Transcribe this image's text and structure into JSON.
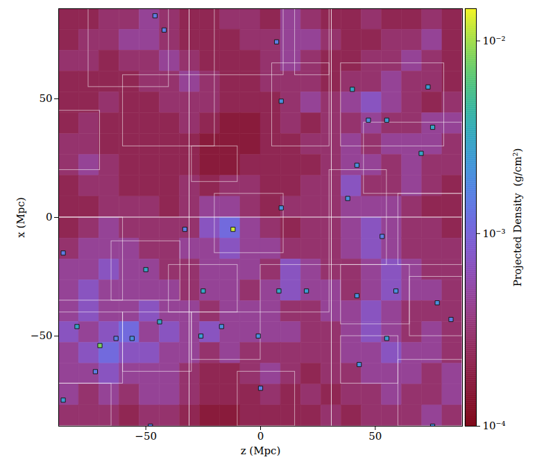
{
  "chart_data": {
    "type": "heatmap",
    "xlabel": "z (Mpc)",
    "ylabel": "x (Mpc)",
    "xlim": [
      -88,
      88
    ],
    "ylim": [
      -88,
      88
    ],
    "xticks": [
      -50,
      0,
      50
    ],
    "yticks": [
      -50,
      0,
      50
    ],
    "colorbar": {
      "label": "Projected Density  (g/cm²)",
      "lim": [
        0.0001,
        0.0147
      ],
      "log": true,
      "ticks": [
        {
          "value": 0.01,
          "label": "10⁻²"
        },
        {
          "value": 0.001,
          "label": "10⁻³"
        },
        {
          "value": 0.0001,
          "label": "10⁻⁴"
        }
      ]
    },
    "cells": [
      [
        0.00022,
        0.00022,
        0.0003,
        0.0003,
        0.00045,
        0.0003,
        0.00022,
        0.00022,
        0.0003,
        0.0003,
        0.00022,
        0.00045,
        0.0003,
        0.00022,
        0.00022,
        0.0003,
        0.00022,
        0.00022,
        0.0003,
        0.00022
      ],
      [
        0.00022,
        0.0003,
        0.0003,
        0.00045,
        0.00045,
        0.0003,
        0.00022,
        0.00022,
        0.00022,
        0.0003,
        0.0003,
        0.00045,
        0.00045,
        0.0003,
        0.00022,
        0.00022,
        0.0003,
        0.0003,
        0.00045,
        0.00022
      ],
      [
        0.0003,
        0.0003,
        0.00022,
        0.0003,
        0.0003,
        0.00045,
        0.0003,
        0.00022,
        0.00022,
        0.00022,
        0.0003,
        0.00045,
        0.0003,
        0.00022,
        0.00022,
        0.0003,
        0.0003,
        0.00045,
        0.0003,
        0.00022
      ],
      [
        0.00022,
        0.00022,
        0.00022,
        0.00022,
        0.0003,
        0.0003,
        0.00045,
        0.0003,
        0.00022,
        0.00022,
        0.0003,
        0.0003,
        0.0003,
        0.00022,
        0.0003,
        0.0003,
        0.00045,
        0.0003,
        0.0003,
        0.00022
      ],
      [
        0.00022,
        0.00022,
        0.0003,
        0.00022,
        0.00022,
        0.0003,
        0.0003,
        0.0003,
        0.00022,
        0.00022,
        0.00022,
        0.0003,
        0.00045,
        0.0003,
        0.00045,
        0.0007,
        0.00045,
        0.0003,
        0.00022,
        0.0003
      ],
      [
        0.00022,
        0.0003,
        0.00022,
        0.00022,
        0.00022,
        0.00022,
        0.0003,
        0.00022,
        0.00016,
        0.00016,
        0.00022,
        0.0003,
        0.00022,
        0.0003,
        0.0003,
        0.00045,
        0.0003,
        0.0003,
        0.00045,
        0.00045
      ],
      [
        0.0003,
        0.0003,
        0.00022,
        0.00022,
        0.00022,
        0.00022,
        0.00022,
        0.00016,
        0.00016,
        0.00016,
        0.00022,
        0.00022,
        0.0003,
        0.0003,
        0.00045,
        0.0003,
        0.00045,
        0.00045,
        0.00045,
        0.0003
      ],
      [
        0.0003,
        0.00045,
        0.0003,
        0.00022,
        0.00022,
        0.00022,
        0.00022,
        0.00016,
        0.00016,
        0.00022,
        0.00022,
        0.00022,
        0.00022,
        0.0003,
        0.00045,
        0.00045,
        0.0003,
        0.00045,
        0.0003,
        0.0003
      ],
      [
        0.00022,
        0.0003,
        0.0003,
        0.00022,
        0.00022,
        0.00022,
        0.0003,
        0.00022,
        0.0003,
        0.0003,
        0.00022,
        0.00022,
        0.0003,
        0.0003,
        0.0007,
        0.0003,
        0.0003,
        0.00045,
        0.0003,
        0.00022
      ],
      [
        0.00022,
        0.00022,
        0.0003,
        0.0003,
        0.0003,
        0.00022,
        0.0003,
        0.00045,
        0.00045,
        0.0003,
        0.00022,
        0.0003,
        0.0003,
        0.0003,
        0.00045,
        0.00045,
        0.00045,
        0.0003,
        0.00022,
        0.00022
      ],
      [
        0.00022,
        0.0003,
        0.00045,
        0.0003,
        0.0003,
        0.0003,
        0.0003,
        0.0007,
        0.0011,
        0.00045,
        0.0003,
        0.00022,
        0.0003,
        0.0003,
        0.00045,
        0.0007,
        0.00045,
        0.0003,
        0.0003,
        0.00022
      ],
      [
        0.0003,
        0.00045,
        0.00045,
        0.00045,
        0.0003,
        0.0003,
        0.00045,
        0.00045,
        0.0007,
        0.00045,
        0.00045,
        0.0003,
        0.0003,
        0.0003,
        0.00045,
        0.0007,
        0.00045,
        0.0003,
        0.0003,
        0.0003
      ],
      [
        0.00045,
        0.00045,
        0.0007,
        0.00045,
        0.00045,
        0.0003,
        0.0003,
        0.00045,
        0.00045,
        0.00045,
        0.0003,
        0.0007,
        0.00045,
        0.0003,
        0.0003,
        0.00045,
        0.0007,
        0.00045,
        0.0003,
        0.0003
      ],
      [
        0.00045,
        0.0007,
        0.00045,
        0.00045,
        0.00045,
        0.00045,
        0.0003,
        0.00045,
        0.00045,
        0.0003,
        0.00045,
        0.0007,
        0.00045,
        0.00045,
        0.0003,
        0.00045,
        0.0007,
        0.00045,
        0.00045,
        0.0003
      ],
      [
        0.00045,
        0.0007,
        0.00045,
        0.00045,
        0.0007,
        0.00045,
        0.00045,
        0.0003,
        0.00045,
        0.00045,
        0.00045,
        0.0003,
        0.0003,
        0.00045,
        0.00045,
        0.0007,
        0.00045,
        0.0003,
        0.0003,
        0.0003
      ],
      [
        0.0007,
        0.00045,
        0.0007,
        0.0011,
        0.00045,
        0.0007,
        0.00045,
        0.0007,
        0.00045,
        0.00045,
        0.00045,
        0.00045,
        0.0003,
        0.0003,
        0.00045,
        0.0007,
        0.00045,
        0.0003,
        0.00045,
        0.0003
      ],
      [
        0.00045,
        0.0007,
        0.0011,
        0.0007,
        0.0007,
        0.00045,
        0.00045,
        0.0003,
        0.00045,
        0.0003,
        0.0003,
        0.0003,
        0.0003,
        0.0003,
        0.00045,
        0.00045,
        0.0007,
        0.00045,
        0.00045,
        0.0003
      ],
      [
        0.00045,
        0.00045,
        0.0007,
        0.00045,
        0.00045,
        0.00045,
        0.0003,
        0.00022,
        0.00022,
        0.0003,
        0.00045,
        0.0003,
        0.00022,
        0.0003,
        0.0003,
        0.00045,
        0.00045,
        0.00045,
        0.0003,
        0.00045
      ],
      [
        0.00045,
        0.0003,
        0.00045,
        0.0003,
        0.00045,
        0.00045,
        0.0003,
        0.00022,
        0.00022,
        0.00022,
        0.0003,
        0.00022,
        0.0003,
        0.00022,
        0.0003,
        0.0003,
        0.00045,
        0.0003,
        0.0003,
        0.00045
      ],
      [
        0.0003,
        0.0003,
        0.0003,
        0.00022,
        0.0003,
        0.0003,
        0.00022,
        0.00016,
        0.00016,
        0.00022,
        0.00022,
        0.00022,
        0.00022,
        0.0003,
        0.00022,
        0.0003,
        0.0003,
        0.0003,
        0.00045,
        0.0003
      ]
    ],
    "halos": [
      [
        -12,
        -5,
        0.012
      ],
      [
        -70,
        -54,
        0.008
      ],
      [
        -80,
        -46,
        0.003
      ],
      [
        -44,
        -44,
        0.003
      ],
      [
        -50,
        -22,
        0.003
      ],
      [
        -25,
        -31,
        0.003
      ],
      [
        8,
        -31,
        0.003
      ],
      [
        20,
        -31,
        0.0025
      ],
      [
        -26,
        -50,
        0.0025
      ],
      [
        -17,
        -46,
        0.002
      ],
      [
        -1,
        -50,
        0.002
      ],
      [
        -86,
        -77,
        0.0025
      ],
      [
        -56,
        -51,
        0.002
      ],
      [
        -63,
        -51,
        0.0015
      ],
      [
        40,
        54,
        0.003
      ],
      [
        70,
        27,
        0.003
      ],
      [
        75,
        38,
        0.003
      ],
      [
        73,
        55,
        0.0025
      ],
      [
        55,
        41,
        0.0025
      ],
      [
        47,
        41,
        0.002
      ],
      [
        42,
        22,
        0.002
      ],
      [
        38,
        8,
        0.002
      ],
      [
        9,
        4,
        0.002
      ],
      [
        9,
        49,
        0.002
      ],
      [
        7,
        74,
        0.0015
      ],
      [
        -46,
        85,
        0.0015
      ],
      [
        -33,
        -5,
        0.0015
      ],
      [
        42,
        -33,
        0.002
      ],
      [
        55,
        -51,
        0.0025
      ],
      [
        43,
        -62,
        0.002
      ],
      [
        59,
        -31,
        0.002
      ],
      [
        77,
        -36,
        0.002
      ],
      [
        83,
        -43,
        0.0015
      ],
      [
        75,
        -88,
        0.002
      ],
      [
        53,
        -8,
        0.0015
      ],
      [
        -42,
        79,
        0.0015
      ],
      [
        -86,
        -15,
        0.0015
      ],
      [
        -72,
        -65,
        0.0015
      ],
      [
        -48,
        -88,
        0.0015
      ],
      [
        0,
        -72,
        0.0015
      ]
    ],
    "grids": [
      [
        -88,
        -31,
        0,
        88
      ],
      [
        -31,
        31,
        0,
        88
      ],
      [
        31,
        88,
        0,
        88
      ],
      [
        -88,
        -31,
        -88,
        0
      ],
      [
        -31,
        31,
        -88,
        0
      ],
      [
        31,
        88,
        -88,
        0
      ],
      [
        -75,
        -40,
        55,
        88
      ],
      [
        -60,
        -20,
        30,
        60
      ],
      [
        -20,
        10,
        60,
        88
      ],
      [
        5,
        30,
        30,
        65
      ],
      [
        35,
        80,
        30,
        65
      ],
      [
        45,
        88,
        10,
        40
      ],
      [
        30,
        55,
        -20,
        20
      ],
      [
        60,
        88,
        -20,
        10
      ],
      [
        -88,
        -60,
        -35,
        0
      ],
      [
        -65,
        -35,
        -35,
        -10
      ],
      [
        -20,
        10,
        -15,
        10
      ],
      [
        -40,
        -10,
        -40,
        -20
      ],
      [
        0,
        30,
        -40,
        -20
      ],
      [
        -88,
        -60,
        -70,
        -40
      ],
      [
        -60,
        -30,
        -65,
        -40
      ],
      [
        -30,
        0,
        -60,
        -40
      ],
      [
        35,
        65,
        -45,
        -20
      ],
      [
        65,
        88,
        -50,
        -25
      ],
      [
        35,
        60,
        -70,
        -50
      ],
      [
        60,
        88,
        -88,
        -60
      ],
      [
        -88,
        -65,
        -88,
        -70
      ],
      [
        -10,
        15,
        -88,
        -65
      ],
      [
        -30,
        -10,
        15,
        30
      ],
      [
        15,
        30,
        60,
        88
      ],
      [
        -88,
        -70,
        20,
        45
      ]
    ]
  }
}
